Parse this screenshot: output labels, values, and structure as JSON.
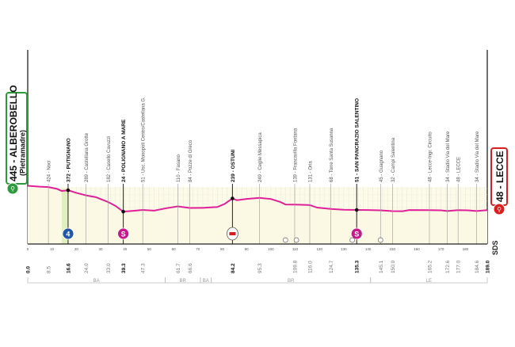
{
  "chart_data": {
    "type": "area",
    "xlabel": "",
    "ylabel": "",
    "xlim": [
      0,
      189
    ],
    "ylim": [
      0,
      400
    ],
    "y_ticks": [
      0,
      100,
      200,
      300,
      400
    ],
    "x_ticks": [
      0,
      10,
      20,
      30,
      40,
      50,
      60,
      70,
      80,
      90,
      100,
      110,
      120,
      130,
      140,
      150,
      160,
      170,
      180
    ],
    "grid": true,
    "line_color": "#e0209a",
    "start": {
      "elevation": "445",
      "name": "ALBEROBELLO",
      "sub": "(Pietramadre)",
      "km": "0.0",
      "color": "#2a9a3a"
    },
    "finish": {
      "elevation": "48",
      "name": "LECCE",
      "km": "189.0",
      "color": "#d81e1e"
    },
    "checkpoints": [
      {
        "km": 8.5,
        "label": "424 - Noci",
        "bold": false
      },
      {
        "km": 16.6,
        "label": "372 - PUTIGNANO",
        "bold": true
      },
      {
        "km": 24.0,
        "label": "289 - Castellana Grotte",
        "bold": false
      },
      {
        "km": 33.0,
        "label": "182 - Casello Cavuzzi",
        "bold": false
      },
      {
        "km": 39.3,
        "label": "24 - POLIGNANO A MARE",
        "bold": true
      },
      {
        "km": 47.3,
        "label": "51 - Usc. Monopoli Centro/Castellana G.",
        "bold": false
      },
      {
        "km": 61.7,
        "label": "110 - Fasano",
        "bold": false
      },
      {
        "km": 66.6,
        "label": "84 - Pozze di Greco",
        "bold": false
      },
      {
        "km": 84.2,
        "label": "239 - OSTUNI",
        "bold": true
      },
      {
        "km": 95.3,
        "label": "249 - Ceglie Messapica",
        "bold": false
      },
      {
        "km": 109.8,
        "label": "139 - Francavilla Fontana",
        "bold": false
      },
      {
        "km": 116.0,
        "label": "131 - Oria",
        "bold": false
      },
      {
        "km": 124.7,
        "label": "68 - Torre Santa Susanna",
        "bold": false
      },
      {
        "km": 135.3,
        "label": "51 - SAN PANCRAZIO SALENTINO",
        "bold": true
      },
      {
        "km": 145.1,
        "label": "45 - Guagnano",
        "bold": false
      },
      {
        "km": 150.0,
        "label": "32 - Campi Salentina",
        "bold": false
      },
      {
        "km": 165.2,
        "label": "48 - Lecce-Ingr. Circuito",
        "bold": false
      },
      {
        "km": 172.6,
        "label": "34 - Stadio Via del Mare",
        "bold": false
      },
      {
        "km": 177.0,
        "label": "48 - LECCE",
        "bold": false
      },
      {
        "km": 184.6,
        "label": "34 - Stadio Via del Mare",
        "bold": false
      }
    ],
    "km_labels": [
      {
        "km": 0.0,
        "text": "0.0",
        "bold": true
      },
      {
        "km": 8.5,
        "text": "8.5",
        "bold": false
      },
      {
        "km": 16.6,
        "text": "16.6",
        "bold": true
      },
      {
        "km": 24.0,
        "text": "24.0",
        "bold": false
      },
      {
        "km": 33.0,
        "text": "33.0",
        "bold": false
      },
      {
        "km": 39.3,
        "text": "39.3",
        "bold": true
      },
      {
        "km": 47.3,
        "text": "47.3",
        "bold": false
      },
      {
        "km": 61.7,
        "text": "61.7",
        "bold": false
      },
      {
        "km": 66.6,
        "text": "66.6",
        "bold": false
      },
      {
        "km": 84.2,
        "text": "84.2",
        "bold": true
      },
      {
        "km": 95.3,
        "text": "95.3",
        "bold": false
      },
      {
        "km": 109.8,
        "text": "109.8",
        "bold": false
      },
      {
        "km": 116.0,
        "text": "116.0",
        "bold": false
      },
      {
        "km": 124.7,
        "text": "124.7",
        "bold": false
      },
      {
        "km": 135.3,
        "text": "135.3",
        "bold": true
      },
      {
        "km": 145.1,
        "text": "145.1",
        "bold": false
      },
      {
        "km": 150.0,
        "text": "150.0",
        "bold": false
      },
      {
        "km": 165.2,
        "text": "165.2",
        "bold": false
      },
      {
        "km": 172.6,
        "text": "172.6",
        "bold": false
      },
      {
        "km": 177.0,
        "text": "177.0",
        "bold": false
      },
      {
        "km": 184.6,
        "text": "184.6",
        "bold": false
      },
      {
        "km": 189.0,
        "text": "189.0",
        "bold": true
      }
    ],
    "profile": [
      [
        0,
        445
      ],
      [
        5,
        430
      ],
      [
        8.5,
        424
      ],
      [
        12,
        395
      ],
      [
        14,
        360
      ],
      [
        16.6,
        372
      ],
      [
        20,
        330
      ],
      [
        24,
        289
      ],
      [
        28,
        260
      ],
      [
        33,
        182
      ],
      [
        36,
        120
      ],
      [
        39.3,
        24
      ],
      [
        43,
        35
      ],
      [
        47.3,
        51
      ],
      [
        52,
        40
      ],
      [
        57,
        80
      ],
      [
        61.7,
        110
      ],
      [
        66.6,
        84
      ],
      [
        72,
        85
      ],
      [
        78,
        100
      ],
      [
        81,
        150
      ],
      [
        84.2,
        239
      ],
      [
        86,
        210
      ],
      [
        90,
        230
      ],
      [
        95.3,
        249
      ],
      [
        100,
        230
      ],
      [
        104,
        180
      ],
      [
        106,
        140
      ],
      [
        109.8,
        139
      ],
      [
        113,
        135
      ],
      [
        116,
        131
      ],
      [
        119,
        90
      ],
      [
        124.7,
        68
      ],
      [
        130,
        55
      ],
      [
        135.3,
        51
      ],
      [
        140,
        50
      ],
      [
        145.1,
        45
      ],
      [
        150,
        32
      ],
      [
        154,
        30
      ],
      [
        157,
        50
      ],
      [
        165.2,
        48
      ],
      [
        170,
        45
      ],
      [
        172.6,
        34
      ],
      [
        177,
        48
      ],
      [
        181,
        45
      ],
      [
        184.6,
        34
      ],
      [
        189,
        48
      ]
    ],
    "markers": [
      {
        "km": 16.6,
        "type": "gpm",
        "label": "4",
        "color": "#2456a8"
      },
      {
        "km": 39.3,
        "type": "sprint",
        "label": "S",
        "color": "#c8198c"
      },
      {
        "km": 84.2,
        "type": "red-bull-km",
        "label": "",
        "color": "#d81e1e"
      },
      {
        "km": 135.3,
        "type": "sprint",
        "label": "S",
        "color": "#c8198c"
      }
    ],
    "service_icons": [
      106,
      110.5,
      133.5,
      145.1
    ],
    "provinces": [
      {
        "from": 0,
        "to": 56.5,
        "label": "BA"
      },
      {
        "from": 56.5,
        "to": 71,
        "label": "BR"
      },
      {
        "from": 71,
        "to": 75.5,
        "label": "BA"
      },
      {
        "from": 75.5,
        "to": 141,
        "label": "BR"
      },
      {
        "from": 141,
        "to": 189,
        "label": "LE"
      }
    ],
    "brand": "SDS"
  }
}
